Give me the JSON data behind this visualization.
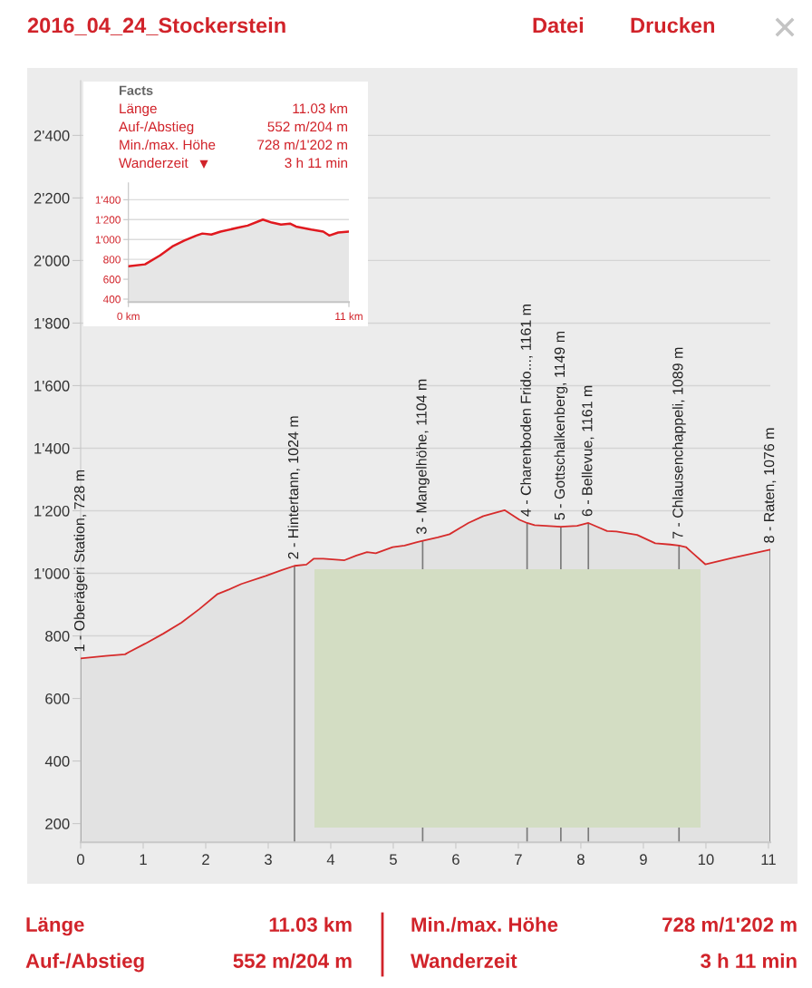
{
  "chart_data": [
    {
      "type": "area",
      "title": "2016_04_24_Stockerstein",
      "annotations": [
        "Datei",
        "Drucken"
      ],
      "x": [
        0,
        0.4,
        0.71,
        0.77,
        1.03,
        1.32,
        1.61,
        1.9,
        2.19,
        2.38,
        2.57,
        2.96,
        3.21,
        3.42,
        3.61,
        3.73,
        3.88,
        4.22,
        4.41,
        4.58,
        4.72,
        4.99,
        5.18,
        5.38,
        5.47,
        5.71,
        5.9,
        6.2,
        6.44,
        6.78,
        7.02,
        7.14,
        7.26,
        7.68,
        7.94,
        8.12,
        8.28,
        8.42,
        8.57,
        8.9,
        9.19,
        9.43,
        9.57,
        9.68,
        9.99,
        10.4,
        11.03
      ],
      "series": [
        {
          "color": "#d62b2b",
          "values": [
            728,
            736,
            741,
            748,
            775,
            807,
            842,
            886,
            934,
            949,
            966,
            992,
            1010,
            1024,
            1028,
            1047,
            1047,
            1042,
            1057,
            1068,
            1064,
            1084,
            1089,
            1100,
            1104,
            1115,
            1125,
            1161,
            1183,
            1202,
            1171,
            1161,
            1154,
            1149,
            1152,
            1161,
            1147,
            1135,
            1134,
            1123,
            1096,
            1092,
            1089,
            1084,
            1029,
            1048,
            1076
          ]
        }
      ],
      "xlim": [
        0,
        11.03
      ],
      "ylim": [
        140,
        2575
      ],
      "xticks": [
        0,
        1,
        2,
        3,
        4,
        5,
        6,
        7,
        8,
        9,
        10,
        11
      ],
      "yticks": [
        200,
        400,
        600,
        800,
        {
          "value": 1000,
          "label": "1'000"
        },
        {
          "value": 1200,
          "label": "1'200"
        },
        {
          "value": 1400,
          "label": "1'400"
        },
        {
          "value": 1600,
          "label": "1'600"
        },
        {
          "value": 1800,
          "label": "1'800"
        },
        {
          "value": 2000,
          "label": "2'000"
        },
        {
          "value": 2200,
          "label": "2'200"
        },
        {
          "value": 2400,
          "label": "2'400"
        }
      ],
      "grid": "y",
      "ref_lines": [
        {
          "axis": "x",
          "value": 0,
          "label": "1 - Oberägeri Station, 728 m",
          "color": "#7a7a7a"
        },
        {
          "axis": "x",
          "value": 3.42,
          "label": "2 - Hintertann, 1024 m",
          "color": "#7a7a7a"
        },
        {
          "axis": "x",
          "value": 5.47,
          "label": "3 - Mangelhöhe, 1104 m",
          "color": "#7a7a7a"
        },
        {
          "axis": "x",
          "value": 7.14,
          "label": "4 - Charenboden Frido..., 1161 m",
          "color": "#7a7a7a"
        },
        {
          "axis": "x",
          "value": 7.68,
          "label": "5 - Gottschalkenberg, 1149 m",
          "color": "#7a7a7a"
        },
        {
          "axis": "x",
          "value": 8.12,
          "label": "6 - Bellevue, 1161 m",
          "color": "#7a7a7a"
        },
        {
          "axis": "x",
          "value": 9.57,
          "label": "7 - Chlausenchappeli, 1089 m",
          "color": "#7a7a7a"
        },
        {
          "axis": "x",
          "value": 11.03,
          "label": "8 - Raten, 1076 m",
          "color": "#7a7a7a"
        }
      ]
    },
    {
      "type": "area",
      "title": "Facts",
      "annotations": [
        "Länge",
        "11.03 km",
        "Auf-/Abstieg",
        "552 m/204 m",
        "Min./max. Höhe",
        "728 m/1'202 m",
        "Wanderzeit",
        "3 h 11 min"
      ],
      "x": [
        0,
        0.83,
        1.58,
        2.19,
        2.79,
        3.39,
        3.69,
        4.14,
        4.6,
        5.5,
        5.95,
        6.71,
        7.16,
        7.61,
        8.06,
        8.36,
        9.12,
        9.72,
        10.02,
        10.47,
        11.0
      ],
      "series": [
        {
          "color": "#e0191f",
          "values": [
            730,
            750,
            840,
            930,
            990,
            1040,
            1060,
            1050,
            1080,
            1120,
            1140,
            1200,
            1170,
            1150,
            1160,
            1130,
            1100,
            1080,
            1040,
            1070,
            1080
          ]
        }
      ],
      "xlim": [
        0,
        11
      ],
      "ylim": [
        370,
        1570
      ],
      "xticks": [
        {
          "value": 0,
          "label": "0 km"
        },
        {
          "value": 11,
          "label": "11 km"
        }
      ],
      "yticks": [
        400,
        600,
        800,
        {
          "value": 1000,
          "label": "1'000"
        },
        {
          "value": 1200,
          "label": "1'200"
        },
        {
          "value": 1400,
          "label": "1'400"
        }
      ],
      "grid": "y"
    },
    {
      "type": "other",
      "annotations": [
        "Länge",
        "11.03 km",
        "Auf-/Abstieg",
        "552 m/204 m",
        "Min./max. Höhe",
        "728 m/1'202 m",
        "Wanderzeit",
        "3 h 11 min"
      ]
    }
  ]
}
